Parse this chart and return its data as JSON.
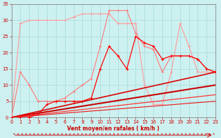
{
  "background_color": "#cdf0f0",
  "grid_color": "#aadddd",
  "xlabel": "Vent moyen/en rafales ( km/h )",
  "xlim": [
    0,
    23
  ],
  "ylim": [
    0,
    35
  ],
  "yticks": [
    0,
    5,
    10,
    15,
    20,
    25,
    30,
    35
  ],
  "xticks": [
    0,
    1,
    2,
    3,
    4,
    5,
    6,
    7,
    8,
    9,
    10,
    11,
    12,
    13,
    14,
    15,
    16,
    17,
    18,
    19,
    20,
    21,
    22,
    23
  ],
  "line_pink_x": [
    0,
    1,
    2,
    3,
    4,
    5,
    6,
    7,
    8,
    9,
    10,
    11,
    12,
    13,
    14,
    15,
    16,
    17,
    18,
    19,
    20,
    21,
    22,
    23
  ],
  "line_pink_y": [
    0,
    29,
    30,
    30,
    30,
    30,
    30,
    31,
    32,
    32,
    32,
    32,
    29,
    29,
    29,
    10,
    4,
    4,
    14,
    29,
    22,
    14,
    14,
    14
  ],
  "line_pink_color": "#ff9999",
  "line_salmon_x": [
    0,
    1,
    2,
    3,
    4,
    5,
    6,
    7,
    8,
    9,
    10,
    11,
    12,
    13,
    14,
    15,
    16,
    17,
    18,
    19,
    20,
    21,
    22,
    23
  ],
  "line_salmon_y": [
    0,
    14,
    10,
    5,
    5,
    5,
    6,
    8,
    10,
    12,
    22,
    33,
    33,
    33,
    26,
    22,
    21,
    14,
    19,
    19,
    19,
    18,
    15,
    14
  ],
  "line_salmon_color": "#ff7777",
  "line_red_x": [
    0,
    1,
    2,
    3,
    4,
    5,
    6,
    7,
    8,
    9,
    10,
    11,
    12,
    13,
    14,
    15,
    16,
    17,
    18,
    19,
    20,
    21,
    22,
    23
  ],
  "line_red_y": [
    0,
    0,
    0,
    1,
    4,
    5,
    5,
    5,
    5,
    6,
    15,
    22,
    19,
    15,
    25,
    23,
    22,
    18,
    19,
    19,
    19,
    18,
    15,
    14
  ],
  "line_red_color": "#ff0000",
  "trend1_x": [
    0,
    23
  ],
  "trend1_y": [
    0,
    14
  ],
  "trend1_color": "#dd0000",
  "trend1_lw": 1.2,
  "trend2_x": [
    0,
    23
  ],
  "trend2_y": [
    0,
    10
  ],
  "trend2_color": "#cc0000",
  "trend2_lw": 1.5,
  "trend3_x": [
    0,
    23
  ],
  "trend3_y": [
    0,
    7
  ],
  "trend3_color": "#ff3333",
  "trend3_lw": 0.9,
  "trend4_x": [
    0,
    23
  ],
  "trend4_y": [
    0,
    5
  ],
  "trend4_color": "#ee1111",
  "trend4_lw": 0.8,
  "xlabel_color": "#cc0000",
  "tick_color": "#cc0000",
  "axis_color": "#888888",
  "marker": "+",
  "markersize": 3.5
}
